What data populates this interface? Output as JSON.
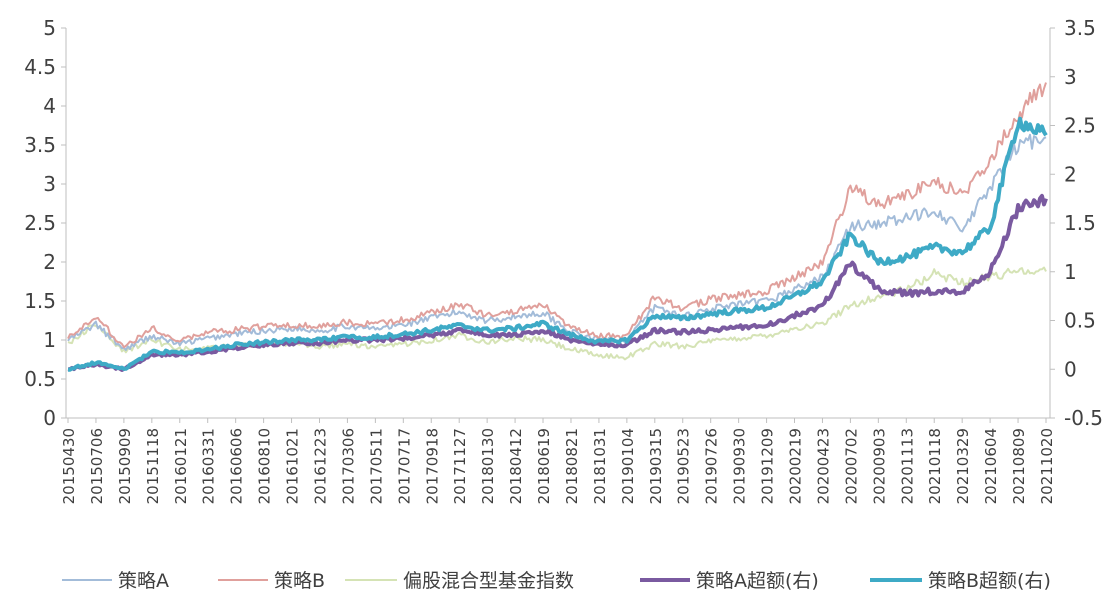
{
  "chart_data": {
    "type": "line",
    "title": "",
    "xlabel": "",
    "ylabel": "",
    "categories": [
      "20150430",
      "20150706",
      "20150909",
      "20151118",
      "20160121",
      "20160331",
      "20160606",
      "20160810",
      "20161021",
      "20161223",
      "20170306",
      "20170511",
      "20170717",
      "20170918",
      "20171127",
      "20180130",
      "20180412",
      "20180619",
      "20180821",
      "20181031",
      "20190104",
      "20190315",
      "20190523",
      "20190726",
      "20190930",
      "20191209",
      "20200219",
      "20200423",
      "20200702",
      "20200903",
      "20201113",
      "20210118",
      "20210329",
      "20210604",
      "20210809",
      "20211020"
    ],
    "y_left": {
      "ticks": [
        "0",
        "0.5",
        "1",
        "1.5",
        "2",
        "2.5",
        "3",
        "3.5",
        "4",
        "4.5",
        "5"
      ],
      "ylim": [
        0,
        5
      ]
    },
    "y_right": {
      "ticks": [
        "-0.5",
        "0",
        "0.5",
        "1",
        "1.5",
        "2",
        "2.5",
        "3",
        "3.5"
      ],
      "ylim": [
        -0.5,
        3.5
      ]
    },
    "series": [
      {
        "name": "策略A",
        "axis": "left",
        "color": "#a3bcd9",
        "width": 2,
        "values": [
          1.0,
          1.2,
          0.88,
          1.05,
          0.95,
          1.02,
          1.08,
          1.12,
          1.15,
          1.12,
          1.18,
          1.14,
          1.2,
          1.28,
          1.36,
          1.25,
          1.3,
          1.35,
          1.1,
          1.0,
          1.0,
          1.42,
          1.3,
          1.4,
          1.45,
          1.5,
          1.65,
          1.8,
          2.45,
          2.5,
          2.55,
          2.68,
          2.4,
          2.95,
          3.5,
          3.6
        ]
      },
      {
        "name": "策略B",
        "axis": "left",
        "color": "#e0a09c",
        "width": 2,
        "values": [
          1.05,
          1.3,
          0.9,
          1.15,
          1.0,
          1.1,
          1.13,
          1.17,
          1.2,
          1.17,
          1.23,
          1.2,
          1.26,
          1.35,
          1.45,
          1.32,
          1.38,
          1.45,
          1.15,
          1.05,
          1.05,
          1.55,
          1.4,
          1.52,
          1.58,
          1.63,
          1.8,
          2.0,
          2.95,
          2.75,
          2.85,
          3.05,
          2.85,
          3.3,
          3.9,
          4.3
        ]
      },
      {
        "name": "偏股混合型基金指数",
        "axis": "left",
        "color": "#d5e3b5",
        "width": 2,
        "values": [
          0.95,
          1.22,
          0.85,
          1.0,
          0.88,
          0.9,
          0.92,
          0.95,
          0.96,
          0.92,
          0.95,
          0.9,
          0.95,
          1.0,
          1.06,
          0.98,
          1.02,
          1.0,
          0.88,
          0.8,
          0.78,
          0.95,
          0.92,
          0.98,
          1.02,
          1.06,
          1.15,
          1.2,
          1.45,
          1.55,
          1.65,
          1.85,
          1.75,
          1.8,
          1.9,
          1.88
        ]
      },
      {
        "name": "策略A超额(右)",
        "axis": "right",
        "color": "#7a5aa0",
        "width": 4,
        "values": [
          0.0,
          0.05,
          0.0,
          0.15,
          0.15,
          0.18,
          0.22,
          0.25,
          0.27,
          0.27,
          0.3,
          0.3,
          0.32,
          0.35,
          0.4,
          0.35,
          0.35,
          0.4,
          0.3,
          0.25,
          0.25,
          0.4,
          0.38,
          0.4,
          0.43,
          0.45,
          0.55,
          0.65,
          1.08,
          0.82,
          0.78,
          0.8,
          0.78,
          1.0,
          1.65,
          1.75
        ]
      },
      {
        "name": "策略B超额(右)",
        "axis": "right",
        "color": "#3eaac6",
        "width": 4,
        "values": [
          0.0,
          0.07,
          0.0,
          0.18,
          0.17,
          0.2,
          0.25,
          0.28,
          0.3,
          0.3,
          0.33,
          0.33,
          0.36,
          0.4,
          0.45,
          0.4,
          0.42,
          0.47,
          0.35,
          0.28,
          0.3,
          0.55,
          0.52,
          0.57,
          0.6,
          0.63,
          0.75,
          0.9,
          1.38,
          1.1,
          1.15,
          1.25,
          1.2,
          1.45,
          2.55,
          2.4
        ]
      }
    ],
    "legend_position": "bottom",
    "grid": false
  }
}
